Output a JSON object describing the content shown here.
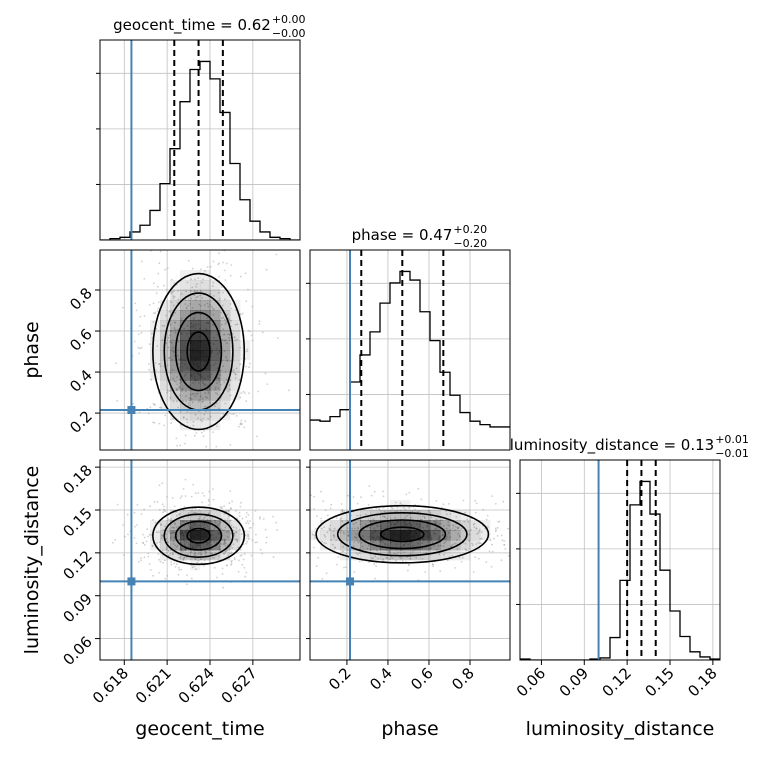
{
  "chart_data": {
    "type": "corner",
    "parameters": [
      "geocent_time",
      "phase",
      "luminosity_distance"
    ],
    "titles": [
      {
        "text": "geocent_time = 0.62",
        "plus": "+0.00",
        "minus": "−0.00"
      },
      {
        "text": "phase = 0.47",
        "plus": "+0.20",
        "minus": "−0.20"
      },
      {
        "text": "luminosity_distance = 0.13",
        "plus": "+0.01",
        "minus": "−0.01"
      }
    ],
    "axis_labels": {
      "x": [
        "geocent_time",
        "phase",
        "luminosity_distance"
      ],
      "y": [
        "phase",
        "luminosity_distance"
      ]
    },
    "ranges": {
      "geocent_time": [
        0.6163,
        0.6303
      ],
      "phase": [
        0.02,
        0.995
      ],
      "luminosity_distance": [
        0.045,
        0.185
      ]
    },
    "ticks": {
      "geocent_time": {
        "values": [
          0.618,
          0.621,
          0.624,
          0.627
        ],
        "labels": [
          "0.618",
          "0.621",
          "0.624",
          "0.627"
        ]
      },
      "phase": {
        "values": [
          0.2,
          0.4,
          0.6,
          0.8
        ],
        "labels": [
          "0.2",
          "0.4",
          "0.6",
          "0.8"
        ]
      },
      "luminosity_distance": {
        "values": [
          0.06,
          0.09,
          0.12,
          0.15,
          0.18
        ],
        "labels": [
          "0.06",
          "0.09",
          "0.12",
          "0.15",
          "0.18"
        ]
      }
    },
    "injection": {
      "geocent_time": 0.6185,
      "phase": 0.215,
      "luminosity_distance": 0.1
    },
    "quantiles": {
      "geocent_time": [
        0.6215,
        0.6232,
        0.6249
      ],
      "phase": [
        0.27,
        0.47,
        0.67
      ],
      "luminosity_distance": [
        0.12,
        0.13,
        0.14
      ]
    },
    "histograms": {
      "geocent_time": {
        "edges_start": 0.6163,
        "bin_width": 0.0007,
        "counts": [
          0,
          1,
          2,
          6,
          11,
          22,
          42,
          68,
          103,
          127,
          133,
          120,
          95,
          57,
          30,
          14,
          6,
          2,
          1,
          0
        ]
      },
      "phase": {
        "edges_start": 0.02,
        "bin_width": 0.04875,
        "counts": [
          52,
          50,
          58,
          70,
          118,
          165,
          205,
          255,
          290,
          310,
          295,
          240,
          190,
          135,
          95,
          65,
          50,
          44,
          40,
          40
        ]
      },
      "luminosity_distance": {
        "edges_start": 0.045,
        "bin_width": 0.007,
        "counts": [
          1,
          0,
          0,
          0,
          0,
          0,
          0,
          1,
          2,
          22,
          78,
          152,
          175,
          143,
          88,
          48,
          23,
          8,
          3,
          1
        ]
      }
    },
    "densities_2d": [
      {
        "x": "geocent_time",
        "y": "phase",
        "center": [
          0.6232,
          0.5
        ],
        "sigma": [
          0.0016,
          0.19
        ]
      },
      {
        "x": "geocent_time",
        "y": "luminosity_distance",
        "center": [
          0.6232,
          0.132
        ],
        "sigma": [
          0.0016,
          0.01
        ]
      },
      {
        "x": "phase",
        "y": "luminosity_distance",
        "center": [
          0.47,
          0.133
        ],
        "sigma": [
          0.21,
          0.01
        ]
      }
    ],
    "colors": {
      "injection": "#4682b4",
      "histogram": "#000000",
      "grid": "#c0c0c0",
      "shade": "#000000"
    },
    "grid": true
  }
}
